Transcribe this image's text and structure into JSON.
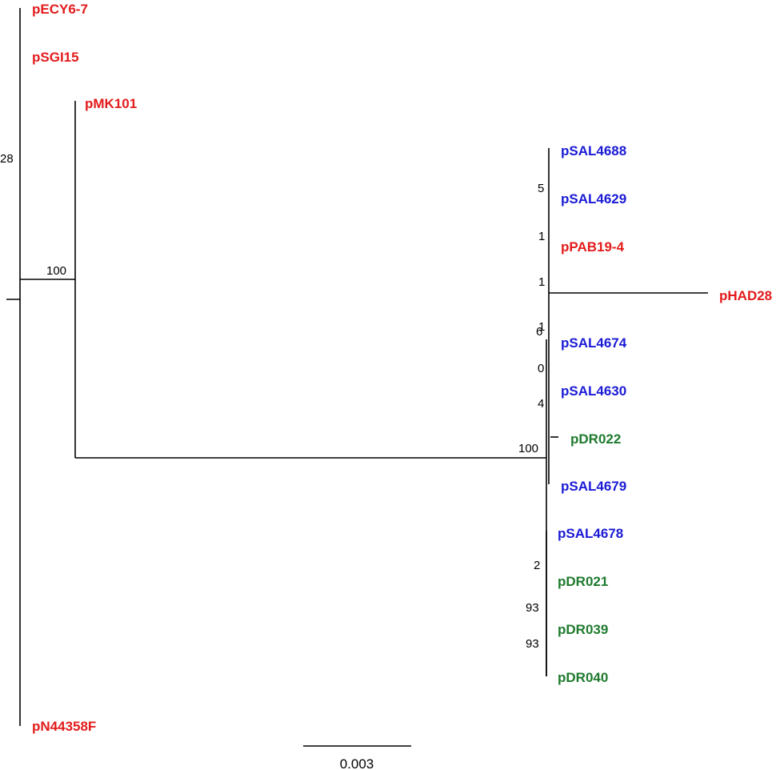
{
  "colors": {
    "group_red": "#e31b1b",
    "group_blue": "#1a1ad6",
    "group_green": "#1e7a2e",
    "branch": "#000000"
  },
  "leaves": [
    {
      "id": "ecy",
      "label": "pECY6-7",
      "color": "#e31b1b"
    },
    {
      "id": "sgi",
      "label": "pSGI15",
      "color": "#e31b1b"
    },
    {
      "id": "mk101",
      "label": "pMK101",
      "color": "#e31b1b"
    },
    {
      "id": "sal4688",
      "label": "pSAL4688",
      "color": "#1a1ad6"
    },
    {
      "id": "sal4629",
      "label": "pSAL4629",
      "color": "#1a1ad6"
    },
    {
      "id": "pab",
      "label": "pPAB19-4",
      "color": "#e31b1b"
    },
    {
      "id": "had",
      "label": "pHAD28",
      "color": "#e31b1b"
    },
    {
      "id": "sal4674",
      "label": "pSAL4674",
      "color": "#1a1ad6"
    },
    {
      "id": "sal4630",
      "label": "pSAL4630",
      "color": "#1a1ad6"
    },
    {
      "id": "dr022",
      "label": "pDR022",
      "color": "#1e7a2e"
    },
    {
      "id": "sal4679",
      "label": "pSAL4679",
      "color": "#1a1ad6"
    },
    {
      "id": "sal4678",
      "label": "pSAL4678",
      "color": "#1a1ad6"
    },
    {
      "id": "dr021",
      "label": "pDR021",
      "color": "#1e7a2e"
    },
    {
      "id": "dr039",
      "label": "pDR039",
      "color": "#1e7a2e"
    },
    {
      "id": "dr040",
      "label": "pDR040",
      "color": "#1e7a2e"
    },
    {
      "id": "n44358f",
      "label": "pN44358F",
      "color": "#e31b1b"
    }
  ],
  "support_values": [
    {
      "id": "s28",
      "value": "28"
    },
    {
      "id": "s100a",
      "value": "100"
    },
    {
      "id": "s5",
      "value": "5"
    },
    {
      "id": "s1a",
      "value": "1"
    },
    {
      "id": "s1b",
      "value": "1"
    },
    {
      "id": "s1c",
      "value": "1"
    },
    {
      "id": "s6",
      "value": "6"
    },
    {
      "id": "s0",
      "value": "0"
    },
    {
      "id": "s4",
      "value": "4"
    },
    {
      "id": "s100b",
      "value": "100"
    },
    {
      "id": "s2",
      "value": "2"
    },
    {
      "id": "s93a",
      "value": "93"
    },
    {
      "id": "s93b",
      "value": "93"
    }
  ],
  "scale_bar": {
    "label": "0.003"
  }
}
